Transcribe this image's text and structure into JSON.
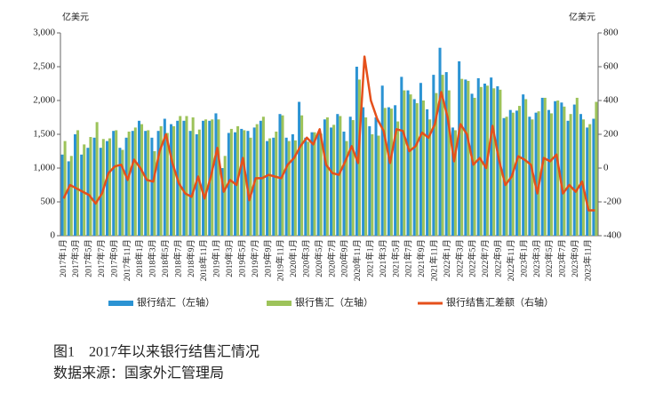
{
  "chart_data": {
    "type": "bar-line",
    "y_label": "亿美元",
    "y2_label": "亿美元",
    "caption": "图1　2017年以来银行结售汇情况",
    "source": "数据来源：国家外汇管理局",
    "categories": [
      "2017年1月",
      null,
      "2017年3月",
      null,
      "2017年5月",
      null,
      "2017年7月",
      null,
      "2017年9月",
      null,
      "2017年11月",
      null,
      "2018年1月",
      null,
      "2018年3月",
      null,
      "2018年5月",
      null,
      "2018年7月",
      null,
      "2018年9月",
      null,
      "2018年11月",
      null,
      "2019年1月",
      null,
      "2019年3月",
      null,
      "2019年5月",
      null,
      "2019年7月",
      null,
      "2019年9月",
      null,
      "2019年11月",
      null,
      "2020年1月",
      null,
      "2020年3月",
      null,
      "2020年5月",
      null,
      "2020年7月",
      null,
      "2020年9月",
      null,
      "2020年11月",
      null,
      "2021年1月",
      null,
      "2021年3月",
      null,
      "2021年5月",
      null,
      "2021年7月",
      null,
      "2021年9月",
      null,
      "2021年11月",
      null,
      "2022年1月",
      null,
      "2022年3月",
      null,
      "2022年5月",
      null,
      "2022年7月",
      null,
      "2022年9月",
      null,
      "2022年11月",
      null,
      "2023年1月",
      null,
      "2023年3月",
      null,
      "2023年5月",
      null,
      "2023年7月",
      null,
      "2023年9月",
      null,
      "2023年11月",
      null
    ],
    "series": [
      {
        "name": "银行结汇（左轴）",
        "color": "#2b93d3",
        "values": [
          1200,
          1100,
          1500,
          1200,
          1300,
          1450,
          1300,
          1400,
          1550,
          1300,
          1450,
          1550,
          1700,
          1550,
          1450,
          1550,
          1730,
          1650,
          1700,
          1700,
          1550,
          1500,
          1700,
          1700,
          1810,
          1000,
          1520,
          1530,
          1580,
          1550,
          1600,
          1700,
          1400,
          1450,
          1800,
          1450,
          1500,
          1980,
          1450,
          1530,
          1520,
          1720,
          1600,
          1800,
          1540,
          1760,
          2500,
          1900,
          1620,
          1750,
          2220,
          1900,
          1930,
          2350,
          2150,
          2020,
          2260,
          1870,
          2380,
          2780,
          2420,
          1600,
          2580,
          2310,
          2100,
          2330,
          2250,
          2340,
          2210,
          1740,
          1860,
          1850,
          2090,
          1760,
          1820,
          2040,
          1860,
          1990,
          1970,
          1700,
          1940,
          1800,
          1600,
          1730
        ]
      },
      {
        "name": "银行售汇（左轴）",
        "color": "#9dc35a",
        "values": [
          1400,
          1180,
          1560,
          1350,
          1460,
          1680,
          1430,
          1440,
          1560,
          1270,
          1540,
          1600,
          1650,
          1560,
          1250,
          1620,
          1520,
          1620,
          1770,
          1770,
          1750,
          1570,
          1720,
          1720,
          1720,
          1180,
          1580,
          1620,
          1560,
          1450,
          1650,
          1760,
          1440,
          1540,
          1780,
          1400,
          1410,
          1780,
          1390,
          1530,
          1510,
          1750,
          1640,
          1770,
          1400,
          1710,
          2310,
          1750,
          1500,
          1480,
          1890,
          1880,
          1690,
          2150,
          2090,
          1960,
          2000,
          1720,
          2110,
          2380,
          2150,
          1560,
          2320,
          2290,
          2040,
          2200,
          2220,
          2180,
          2160,
          1760,
          1820,
          1920,
          2020,
          1720,
          1840,
          2040,
          1810,
          2000,
          1910,
          1800,
          2040,
          1720,
          1650,
          1980
        ]
      },
      {
        "name": "银行结售汇差额（右轴）",
        "color": "#e5501b",
        "axis": "y2",
        "values": [
          -180,
          -100,
          -120,
          -140,
          -160,
          -210,
          -150,
          -30,
          10,
          20,
          -70,
          50,
          0,
          -70,
          -80,
          100,
          200,
          30,
          -90,
          -150,
          -170,
          -50,
          -180,
          -50,
          120,
          -140,
          -70,
          -100,
          60,
          -190,
          -60,
          -60,
          -40,
          -50,
          -60,
          20,
          60,
          130,
          180,
          140,
          230,
          20,
          -30,
          -40,
          40,
          130,
          30,
          660,
          400,
          290,
          220,
          30,
          230,
          220,
          100,
          130,
          210,
          180,
          260,
          450,
          300,
          40,
          260,
          200,
          20,
          60,
          0,
          250,
          50,
          -100,
          -50,
          70,
          50,
          20,
          -150,
          60,
          40,
          80,
          -150,
          -100,
          -140,
          -80,
          -250,
          -250
        ]
      }
    ],
    "ylim": [
      0,
      3000
    ],
    "yticks": [
      0,
      500,
      {
        "value": 1000,
        "label": "1,000"
      },
      {
        "value": 1500,
        "label": "1,500"
      },
      {
        "value": 2000,
        "label": "2,000"
      },
      {
        "value": 2500,
        "label": "2,500"
      },
      {
        "value": 3000,
        "label": "3,000"
      }
    ],
    "y2lim": [
      -400,
      800
    ],
    "y2ticks": [
      -400,
      -200,
      0,
      200,
      400,
      600,
      800
    ]
  }
}
